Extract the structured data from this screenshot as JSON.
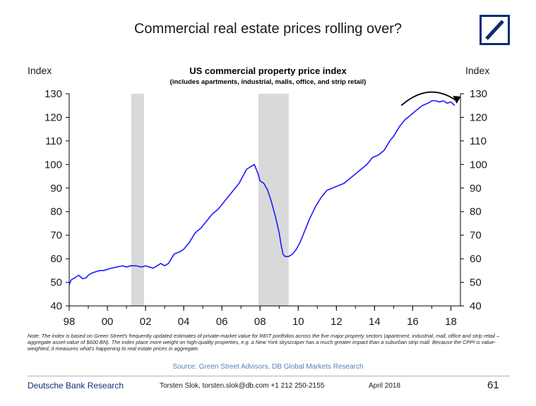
{
  "slide": {
    "title": "Commercial real estate prices rolling over?",
    "note": "Note: The index is based on Green Street's frequently updated estimates of private-market value for REIT portfolios across the five major property sectors (apartment, industrial, mall, office and strip retail – aggregate asset-value of $600 BN). The index place more weight on high-quality properties, e.g. a New York skyscraper has a much greater impact than a suburban strip mall. Because the CPPI is value-weighted, it measures what's happening to real estate prices in aggregate.",
    "source": "Source: Green Street Advisors, DB Global Markets Research"
  },
  "footer": {
    "brand": "Deutsche Bank Research",
    "contact": "Torsten Slok, torsten.slok@db.com +1 212 250-2155",
    "date": "April 2018",
    "page_number": "61"
  },
  "colors": {
    "line": "#1a1aff",
    "recession_band": "#d9d9d9",
    "brand_blue": "#0f2a75"
  },
  "chart_data": {
    "type": "line",
    "title": "US commercial property price index",
    "subtitle": "(includes apartments, industrial, malls, office, and strip retail)",
    "ylabel_left": "Index",
    "ylabel_right": "Index",
    "ylim": [
      40,
      130
    ],
    "xlim": [
      1998,
      2018.5
    ],
    "yticks": [
      40,
      50,
      60,
      70,
      80,
      90,
      100,
      110,
      120,
      130
    ],
    "xticks": [
      {
        "value": 1998,
        "label": "98"
      },
      {
        "value": 2000,
        "label": "00"
      },
      {
        "value": 2002,
        "label": "02"
      },
      {
        "value": 2004,
        "label": "04"
      },
      {
        "value": 2006,
        "label": "06"
      },
      {
        "value": 2008,
        "label": "08"
      },
      {
        "value": 2010,
        "label": "10"
      },
      {
        "value": 2012,
        "label": "12"
      },
      {
        "value": 2014,
        "label": "14"
      },
      {
        "value": 2016,
        "label": "16"
      },
      {
        "value": 2018,
        "label": "18"
      }
    ],
    "recessions": [
      [
        2001.25,
        2001.92
      ],
      [
        2007.92,
        2009.5
      ]
    ],
    "arrow": {
      "from": [
        2015.4,
        125
      ],
      "to": [
        2018.3,
        127
      ]
    },
    "series": [
      {
        "x": [
          1998.0,
          1998.1,
          1998.3,
          1998.5,
          1998.7,
          1998.9,
          1999.0,
          1999.2,
          1999.4,
          1999.6,
          1999.8,
          2000.0,
          2000.2,
          2000.5,
          2000.8,
          2001.0,
          2001.2,
          2001.5,
          2001.8,
          2002.0,
          2002.2,
          2002.4,
          2002.6,
          2002.8,
          2003.0,
          2003.2,
          2003.5,
          2003.8,
          2004.0,
          2004.3,
          2004.6,
          2004.9,
          2005.2,
          2005.5,
          2005.8,
          2006.0,
          2006.3,
          2006.6,
          2006.9,
          2007.1,
          2007.3,
          2007.5,
          2007.7,
          2007.9,
          2008.0,
          2008.2,
          2008.4,
          2008.6,
          2008.8,
          2009.0,
          2009.1,
          2009.2,
          2009.3,
          2009.5,
          2009.7,
          2009.9,
          2010.1,
          2010.3,
          2010.6,
          2010.9,
          2011.2,
          2011.5,
          2011.8,
          2012.1,
          2012.4,
          2012.7,
          2013.0,
          2013.3,
          2013.6,
          2013.9,
          2014.2,
          2014.5,
          2014.8,
          2015.0,
          2015.3,
          2015.6,
          2015.9,
          2016.2,
          2016.5,
          2016.8,
          2017.0,
          2017.2,
          2017.4,
          2017.6,
          2017.8,
          2018.0,
          2018.2
        ],
        "values": [
          49,
          51,
          52,
          53,
          51.5,
          52,
          53,
          54,
          54.5,
          55,
          55,
          55.5,
          56,
          56.5,
          57,
          56.5,
          57,
          57,
          56.5,
          57,
          56.5,
          56,
          57,
          58,
          57,
          58,
          62,
          63,
          64,
          67,
          71,
          73,
          76,
          79,
          81,
          83,
          86,
          89,
          92,
          95,
          98,
          99,
          100,
          96,
          93,
          92,
          89,
          84,
          78,
          71,
          66,
          62,
          61,
          61,
          62,
          64,
          67,
          71,
          77,
          82,
          86,
          89,
          90,
          91,
          92,
          94,
          96,
          98,
          100,
          103,
          104,
          106,
          110,
          112,
          116,
          119,
          121,
          123,
          125,
          126,
          127,
          127,
          126.5,
          127,
          126,
          126.5,
          125
        ]
      }
    ]
  }
}
